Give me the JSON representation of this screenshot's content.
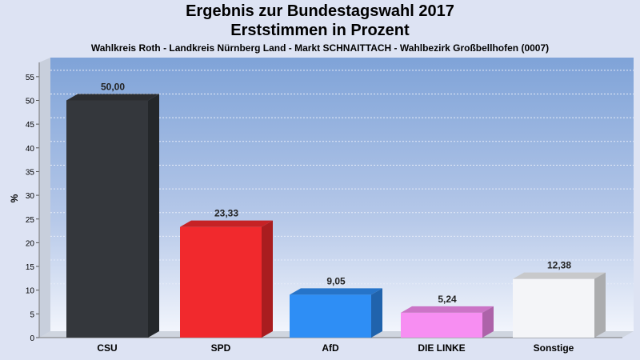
{
  "chart_data": {
    "type": "bar",
    "title": "Ergebnis zur Bundestagswahl 2017",
    "subtitle": "Erststimmen in Prozent",
    "subtitle2": "Wahlkreis Roth - Landkreis Nürnberg Land - Markt SCHNAITTACH - Wahlbezirk Großbellhofen (0007)",
    "ylabel": "%",
    "xlabel": "",
    "ylim": [
      0,
      58
    ],
    "yticks": [
      0,
      5,
      10,
      15,
      20,
      25,
      30,
      35,
      40,
      45,
      50,
      55
    ],
    "categories": [
      "CSU",
      "SPD",
      "AfD",
      "DIE LINKE",
      "Sonstige"
    ],
    "values": [
      50.0,
      23.33,
      9.05,
      5.24,
      12.38
    ],
    "value_labels": [
      "50,00",
      "23,33",
      "9,05",
      "5,24",
      "12,38"
    ],
    "colors": [
      "#34373c",
      "#f1292d",
      "#2e8ef5",
      "#f78ef2",
      "#f4f5f8"
    ],
    "grid": true
  }
}
